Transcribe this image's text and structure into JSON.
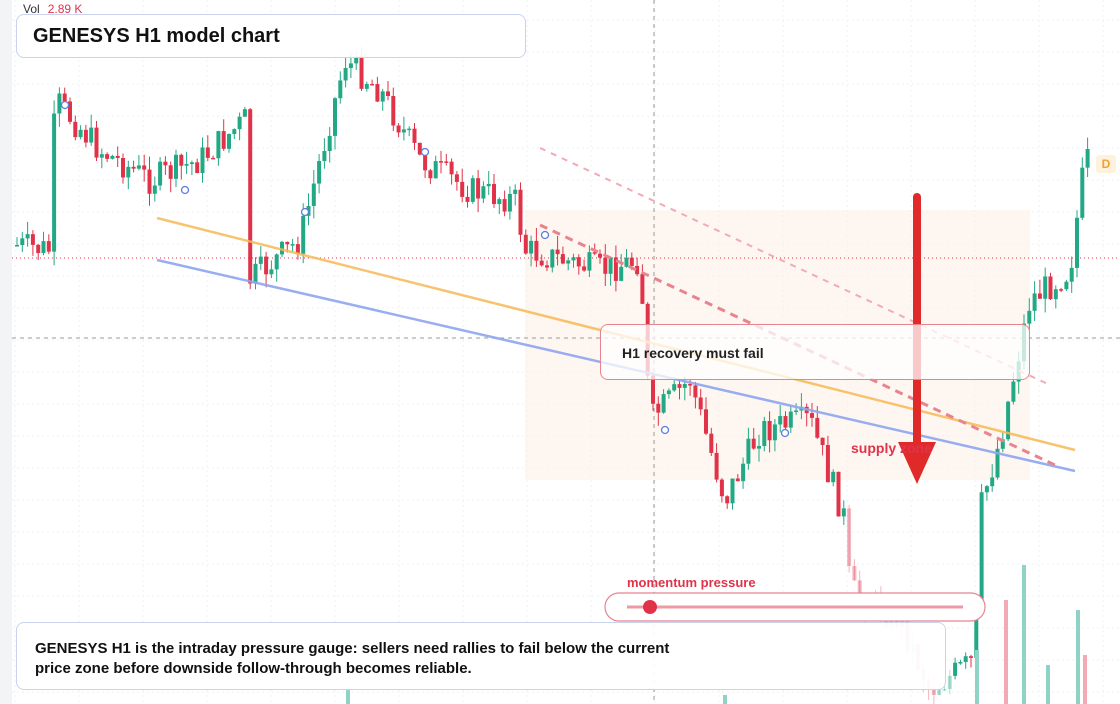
{
  "legend": {
    "label": "Vol",
    "value": "2.89 K"
  },
  "header": {
    "title": "GENESYS H1 model chart"
  },
  "badge": "D",
  "callout": "H1 recovery must fail",
  "zone_label": "supply zone",
  "slider_label": "momentum pressure",
  "note": "GENESYS H1 is the intraday pressure gauge: sellers need rallies to fail below the current price zone before downside follow-through becomes reliable."
}
